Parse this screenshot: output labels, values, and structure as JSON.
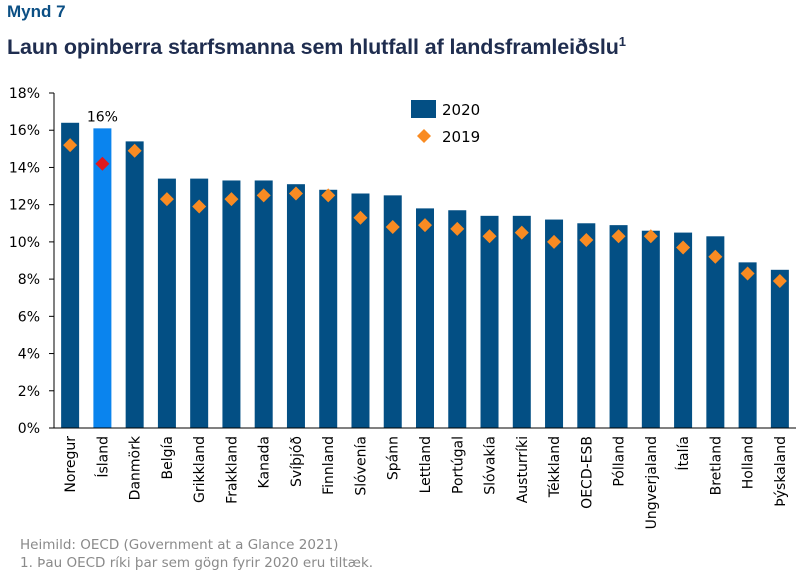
{
  "figure": {
    "label": "Mynd 7",
    "title": "Laun opinberra starfsmanna sem hlutfall af landsframleiðslu",
    "title_footnote_mark": "1",
    "source": "Heimild: OECD (Government at a Glance 2021)",
    "footnote": "1. Þau OECD ríki þar sem gögn fyrir 2020 eru tiltæk."
  },
  "colors": {
    "bar_2020": "#034f84",
    "bar_highlight": "#0a84ee",
    "marker_2019": "#f98b22",
    "marker_highlight": "#e0191d",
    "axis": "#000000"
  },
  "chart_data": {
    "type": "bar",
    "title": "Laun opinberra starfsmanna sem hlutfall af landsframleiðslu",
    "xlabel": "",
    "ylabel": "",
    "ylim": [
      0,
      18
    ],
    "yticks": [
      0,
      2,
      4,
      6,
      8,
      10,
      12,
      14,
      16,
      18
    ],
    "ytick_labels": [
      "0%",
      "2%",
      "4%",
      "6%",
      "8%",
      "10%",
      "12%",
      "14%",
      "16%",
      "18%"
    ],
    "grid": false,
    "legend_position": "top-center",
    "categories": [
      "Noregur",
      "Ísland",
      "Danmörk",
      "Belgía",
      "Grikkland",
      "Frakkland",
      "Kanada",
      "Svíþjóð",
      "Finnland",
      "Slóvenía",
      "Spánn",
      "Lettland",
      "Portúgal",
      "Slóvakía",
      "Austurríki",
      "Tékkland",
      "OECD-ESB",
      "Pólland",
      "Ungverjaland",
      "Ítalía",
      "Bretland",
      "Holland",
      "Þýskaland"
    ],
    "highlight_category": "Ísland",
    "series": [
      {
        "name": "2020",
        "kind": "bar",
        "values": [
          16.4,
          16.1,
          15.4,
          13.4,
          13.4,
          13.3,
          13.3,
          13.1,
          12.8,
          12.6,
          12.5,
          11.8,
          11.7,
          11.4,
          11.4,
          11.2,
          11.0,
          10.9,
          10.6,
          10.5,
          10.3,
          8.9,
          8.5
        ]
      },
      {
        "name": "2019",
        "kind": "marker-diamond",
        "values": [
          15.2,
          14.2,
          14.9,
          12.3,
          11.9,
          12.3,
          12.5,
          12.6,
          12.5,
          11.3,
          10.8,
          10.9,
          10.7,
          10.3,
          10.5,
          10.0,
          10.1,
          10.3,
          10.3,
          9.7,
          9.2,
          8.3,
          7.9
        ]
      }
    ],
    "annotations": [
      {
        "category": "Ísland",
        "text": "16%"
      }
    ]
  }
}
